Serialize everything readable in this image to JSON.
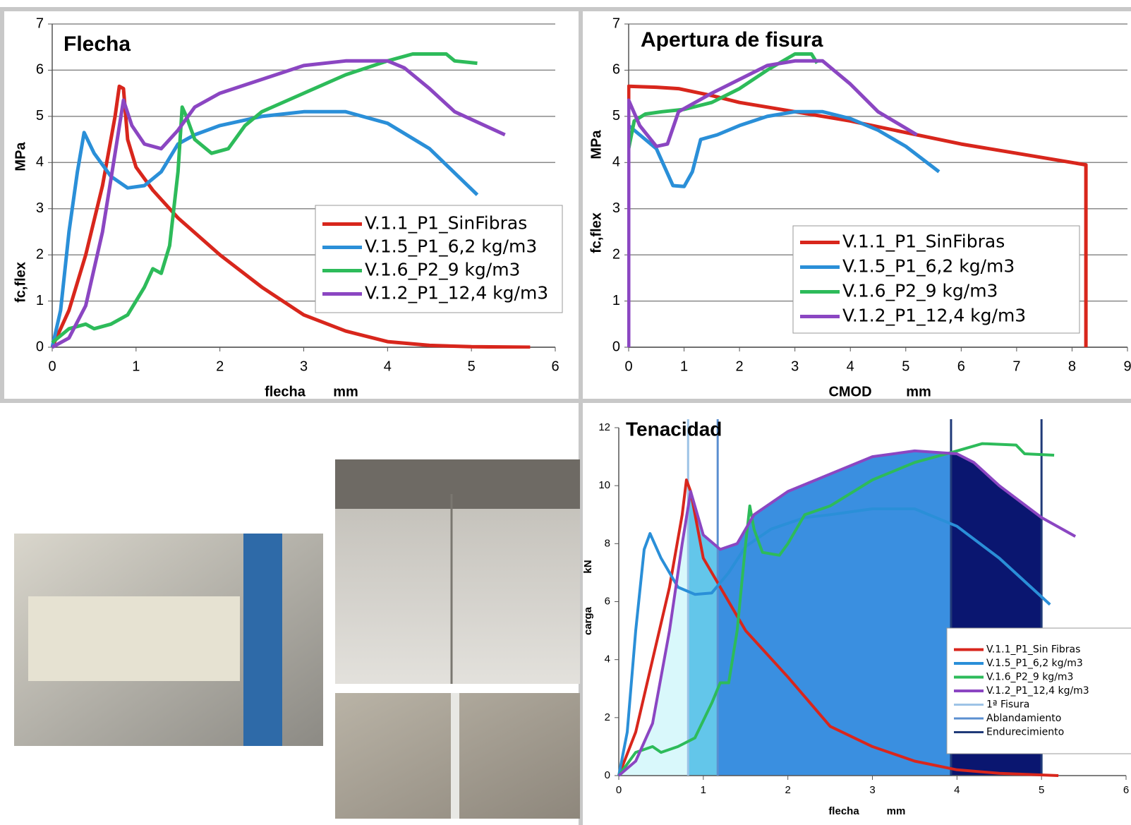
{
  "chart_data": [
    {
      "type": "line",
      "title": "Flecha",
      "xlabel": "flecha",
      "xunit": "mm",
      "ylabel": "fc,flex",
      "yunit": "MPa",
      "xlim": [
        0,
        6
      ],
      "ylim": [
        0,
        7
      ],
      "xticks": [
        0,
        1,
        2,
        3,
        4,
        5,
        6
      ],
      "yticks": [
        0,
        1,
        2,
        3,
        4,
        5,
        6,
        7
      ],
      "grid": true,
      "series": [
        {
          "name": "V.1.1_P1_SinFibras",
          "color": "#d8261c",
          "x": [
            0,
            0.2,
            0.4,
            0.6,
            0.75,
            0.8,
            0.85,
            0.9,
            1.0,
            1.2,
            1.5,
            2,
            2.5,
            3,
            3.5,
            4,
            4.5,
            5,
            5.7
          ],
          "values": [
            0,
            0.8,
            2,
            3.5,
            5,
            5.65,
            5.6,
            4.5,
            3.9,
            3.4,
            2.8,
            2,
            1.3,
            0.7,
            0.35,
            0.12,
            0.04,
            0.01,
            0
          ]
        },
        {
          "name": "V.1.5_P1_6,2 kg/m3",
          "color": "#2a8fd8",
          "x": [
            0,
            0.1,
            0.2,
            0.3,
            0.38,
            0.5,
            0.7,
            0.9,
            1.1,
            1.3,
            1.5,
            1.7,
            2,
            2.5,
            3,
            3.5,
            4,
            4.5,
            5.07
          ],
          "values": [
            0,
            0.8,
            2.5,
            3.8,
            4.65,
            4.2,
            3.7,
            3.45,
            3.5,
            3.8,
            4.4,
            4.6,
            4.8,
            5,
            5.1,
            5.1,
            4.85,
            4.3,
            3.3
          ]
        },
        {
          "name": "V.1.6_P2_9 kg/m3",
          "color": "#2dbb5a",
          "x": [
            0,
            0.2,
            0.4,
            0.5,
            0.7,
            0.9,
            1.1,
            1.2,
            1.3,
            1.4,
            1.5,
            1.55,
            1.6,
            1.7,
            1.9,
            2.1,
            2.3,
            2.5,
            3,
            3.5,
            4,
            4.3,
            4.7,
            4.8,
            5.07
          ],
          "values": [
            0.1,
            0.4,
            0.5,
            0.4,
            0.5,
            0.7,
            1.3,
            1.7,
            1.6,
            2.2,
            3.8,
            5.2,
            5.0,
            4.5,
            4.2,
            4.3,
            4.8,
            5.1,
            5.5,
            5.9,
            6.2,
            6.35,
            6.35,
            6.2,
            6.15
          ]
        },
        {
          "name": "V.1.2_P1_12,4 kg/m3",
          "color": "#8b46c2",
          "x": [
            0,
            0.2,
            0.4,
            0.6,
            0.75,
            0.85,
            0.95,
            1.1,
            1.3,
            1.5,
            1.7,
            2,
            2.5,
            3,
            3.5,
            4,
            4.2,
            4.5,
            4.8,
            5.4
          ],
          "values": [
            0,
            0.2,
            0.9,
            2.5,
            4.2,
            5.35,
            4.8,
            4.4,
            4.3,
            4.7,
            5.2,
            5.5,
            5.8,
            6.1,
            6.2,
            6.2,
            6.05,
            5.6,
            5.1,
            4.6
          ]
        }
      ]
    },
    {
      "type": "line",
      "title": "Apertura de fisura",
      "xlabel": "CMOD",
      "xunit": "mm",
      "ylabel": "fc,flex",
      "yunit": "MPa",
      "xlim": [
        0,
        9
      ],
      "ylim": [
        0,
        7
      ],
      "xticks": [
        0,
        1,
        2,
        3,
        4,
        5,
        6,
        7,
        8,
        9
      ],
      "yticks": [
        0,
        1,
        2,
        3,
        4,
        5,
        6,
        7
      ],
      "grid": true,
      "series": [
        {
          "name": "V.1.1_P1_SinFibras",
          "color": "#d8261c",
          "x": [
            0,
            0,
            0.5,
            0.9,
            1.5,
            2,
            3,
            4,
            5,
            6,
            7,
            8.25,
            8.25
          ],
          "values": [
            0.5,
            5.65,
            5.63,
            5.6,
            5.45,
            5.3,
            5.1,
            4.9,
            4.65,
            4.4,
            4.2,
            3.95,
            0
          ]
        },
        {
          "name": "V.1.5_P1_6,2 kg/m3",
          "color": "#2a8fd8",
          "x": [
            0,
            0,
            0.2,
            0.5,
            0.8,
            1,
            1.15,
            1.3,
            1.6,
            2,
            2.5,
            3,
            3.5,
            4,
            4.5,
            5,
            5.6
          ],
          "values": [
            0,
            4.8,
            4.6,
            4.3,
            3.5,
            3.48,
            3.8,
            4.5,
            4.6,
            4.8,
            5,
            5.1,
            5.1,
            4.95,
            4.7,
            4.35,
            3.8
          ]
        },
        {
          "name": "V.1.6_P2_9 kg/m3",
          "color": "#2dbb5a",
          "x": [
            0,
            0,
            0.1,
            0.3,
            0.6,
            1,
            1.5,
            2,
            2.5,
            3,
            3.3,
            3.4
          ],
          "values": [
            0,
            4.3,
            4.9,
            5.05,
            5.1,
            5.15,
            5.3,
            5.6,
            6,
            6.35,
            6.35,
            6.15
          ]
        },
        {
          "name": "V.1.2_P1_12,4 kg/m3",
          "color": "#8b46c2",
          "x": [
            0,
            0,
            0.2,
            0.5,
            0.7,
            0.9,
            1.2,
            1.5,
            2,
            2.5,
            3,
            3.5,
            4,
            4.5,
            5.2
          ],
          "values": [
            0,
            5.35,
            4.8,
            4.35,
            4.4,
            5.1,
            5.3,
            5.5,
            5.8,
            6.1,
            6.2,
            6.2,
            5.7,
            5.1,
            4.6
          ]
        }
      ]
    },
    {
      "type": "line",
      "title": "Tenacidad",
      "xlabel": "flecha",
      "xunit": "mm",
      "ylabel": "carga",
      "yunit": "kN",
      "xlim": [
        0,
        6
      ],
      "ylim": [
        0,
        12
      ],
      "xticks": [
        0,
        1,
        2,
        3,
        4,
        5,
        6
      ],
      "yticks": [
        0,
        2,
        4,
        6,
        8,
        10,
        12
      ],
      "grid": false,
      "regions": [
        {
          "from": 0,
          "to": 0.82,
          "color": "#d9f8fb"
        },
        {
          "from": 0.82,
          "to": 1.17,
          "color": "#63c6ea"
        },
        {
          "from": 1.17,
          "to": 3.93,
          "color": "#3a8fe0"
        },
        {
          "from": 3.93,
          "to": 5.0,
          "color": "#0a1670"
        }
      ],
      "markers": [
        {
          "name": "1ª Fisura",
          "color": "#9dc3e6",
          "x": [
            0.82
          ]
        },
        {
          "name": "Ablandamiento",
          "color": "#5b8fd0",
          "x": [
            1.17
          ]
        },
        {
          "name": "Endurecimiento",
          "color": "#203a78",
          "x": [
            3.93,
            5.0
          ]
        }
      ],
      "series": [
        {
          "name": "V.1.1_P1_Sin Fibras",
          "color": "#d8261c",
          "x": [
            0,
            0.2,
            0.4,
            0.6,
            0.75,
            0.8,
            0.85,
            1,
            1.1,
            1.5,
            2,
            2.5,
            3,
            3.5,
            4,
            4.5,
            5.2
          ],
          "values": [
            0,
            1.5,
            4,
            6.5,
            9,
            10.2,
            9.8,
            7.5,
            7,
            5,
            3.4,
            1.7,
            1,
            0.5,
            0.2,
            0.08,
            0
          ]
        },
        {
          "name": "V.1.5_P1_6,2 kg/m3",
          "color": "#2a8fd8",
          "x": [
            0,
            0.1,
            0.2,
            0.3,
            0.37,
            0.5,
            0.7,
            0.9,
            1.1,
            1.3,
            1.5,
            1.8,
            2.2,
            2.5,
            3,
            3.5,
            4,
            4.5,
            5.1
          ],
          "values": [
            0,
            1.5,
            5,
            7.8,
            8.35,
            7.5,
            6.5,
            6.25,
            6.3,
            7,
            7.9,
            8.5,
            8.9,
            9,
            9.2,
            9.2,
            8.6,
            7.5,
            5.9
          ]
        },
        {
          "name": "V.1.6_P2_9 kg/m3",
          "color": "#2dbb5a",
          "x": [
            0,
            0.2,
            0.4,
            0.5,
            0.7,
            0.9,
            1.1,
            1.2,
            1.3,
            1.4,
            1.5,
            1.55,
            1.6,
            1.7,
            1.9,
            2,
            2.2,
            2.5,
            3,
            3.5,
            4,
            4.3,
            4.7,
            4.8,
            5.15
          ],
          "values": [
            0,
            0.8,
            1,
            0.8,
            1,
            1.3,
            2.5,
            3.2,
            3.2,
            5,
            8,
            9.3,
            8.5,
            7.7,
            7.6,
            8,
            9,
            9.3,
            10.2,
            10.8,
            11.2,
            11.45,
            11.4,
            11.1,
            11.05
          ]
        },
        {
          "name": "V.1.2_P1_12,4 kg/m3",
          "color": "#8b46c2",
          "x": [
            0,
            0.2,
            0.4,
            0.6,
            0.75,
            0.85,
            1,
            1.2,
            1.4,
            1.6,
            2,
            2.5,
            3,
            3.5,
            4,
            4.2,
            4.5,
            5,
            5.4
          ],
          "values": [
            0,
            0.5,
            1.8,
            5,
            8,
            9.8,
            8.3,
            7.8,
            8,
            9,
            9.8,
            10.4,
            11,
            11.2,
            11.1,
            10.8,
            10,
            8.9,
            8.25
          ]
        }
      ]
    }
  ]
}
